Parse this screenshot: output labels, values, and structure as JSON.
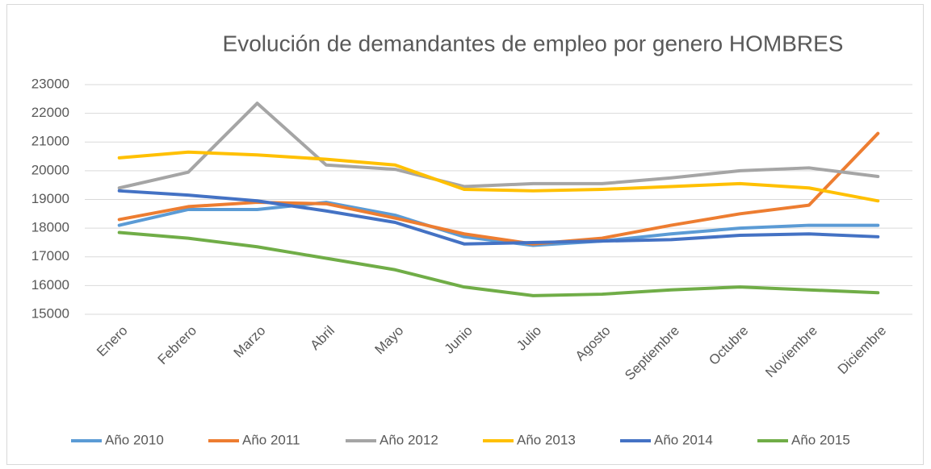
{
  "chart_data": {
    "type": "line",
    "title": "Evolución de demandantes de empleo por genero HOMBRES",
    "categories": [
      "Enero",
      "Febrero",
      "Marzo",
      "Abril",
      "Mayo",
      "Junio",
      "Julio",
      "Agosto",
      "Septiembre",
      "Octubre",
      "Noviembre",
      "Diciembre"
    ],
    "series": [
      {
        "name": "Año 2010",
        "color": "#5b9bd5",
        "values": [
          18100,
          18650,
          18650,
          18900,
          18450,
          17700,
          17400,
          17550,
          17800,
          18000,
          18100,
          18100
        ]
      },
      {
        "name": "Año 2011",
        "color": "#ed7d31",
        "values": [
          18300,
          18750,
          18900,
          18850,
          18350,
          17800,
          17450,
          17650,
          18100,
          18500,
          18800,
          21300
        ]
      },
      {
        "name": "Año 2012",
        "color": "#a5a5a5",
        "values": [
          19400,
          19950,
          22350,
          20200,
          20050,
          19450,
          19550,
          19550,
          19750,
          20000,
          20100,
          19800
        ]
      },
      {
        "name": "Año 2013",
        "color": "#ffc000",
        "values": [
          20450,
          20650,
          20550,
          20400,
          20200,
          19350,
          19300,
          19350,
          19450,
          19550,
          19400,
          18950
        ]
      },
      {
        "name": "Año 2014",
        "color": "#4472c4",
        "values": [
          19300,
          19150,
          18950,
          18600,
          18200,
          17450,
          17500,
          17550,
          17600,
          17750,
          17800,
          17700
        ]
      },
      {
        "name": "Año 2015",
        "color": "#70ad47",
        "values": [
          17850,
          17650,
          17350,
          16950,
          16550,
          15950,
          15650,
          15700,
          15850,
          15950,
          15850,
          15750
        ]
      }
    ],
    "ylim": [
      15000,
      23000
    ],
    "yticks": [
      15000,
      16000,
      17000,
      18000,
      19000,
      20000,
      21000,
      22000,
      23000
    ],
    "grid": true,
    "legend": "bottom"
  }
}
